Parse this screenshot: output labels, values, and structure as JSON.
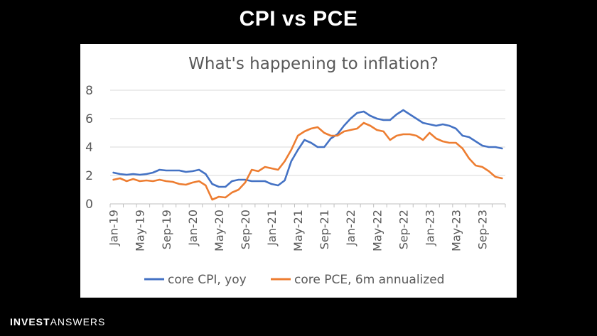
{
  "slide": {
    "title": "CPI vs PCE"
  },
  "brand": {
    "part1": "INVEST",
    "part2": "ANSWERS"
  },
  "chart_data": {
    "type": "line",
    "title": "What's happening to inflation?",
    "xlabel": "",
    "ylabel": "",
    "ylim": [
      0,
      8
    ],
    "yticks": [
      0,
      2,
      4,
      6,
      8
    ],
    "grid": true,
    "legend_position": "bottom",
    "x": [
      "2019-01",
      "2019-02",
      "2019-03",
      "2019-04",
      "2019-05",
      "2019-06",
      "2019-07",
      "2019-08",
      "2019-09",
      "2019-10",
      "2019-11",
      "2019-12",
      "2020-01",
      "2020-02",
      "2020-03",
      "2020-04",
      "2020-05",
      "2020-06",
      "2020-07",
      "2020-08",
      "2020-09",
      "2020-10",
      "2020-11",
      "2020-12",
      "2021-01",
      "2021-02",
      "2021-03",
      "2021-04",
      "2021-05",
      "2021-06",
      "2021-07",
      "2021-08",
      "2021-09",
      "2021-10",
      "2021-11",
      "2021-12",
      "2022-01",
      "2022-02",
      "2022-03",
      "2022-04",
      "2022-05",
      "2022-06",
      "2022-07",
      "2022-08",
      "2022-09",
      "2022-10",
      "2022-11",
      "2022-12",
      "2023-01",
      "2023-02",
      "2023-03",
      "2023-04",
      "2023-05",
      "2023-06",
      "2023-07",
      "2023-08",
      "2023-09",
      "2023-10",
      "2023-11",
      "2023-12"
    ],
    "tick_labels": [
      "Jan-19",
      "May-19",
      "Sep-19",
      "Jan-20",
      "May-20",
      "Sep-20",
      "Jan-21",
      "May-21",
      "Sep-21",
      "Jan-22",
      "May-22",
      "Sep-22",
      "Jan-23",
      "May-23",
      "Sep-23"
    ],
    "series": [
      {
        "name": "core CPI, yoy",
        "color": "#4472C4",
        "values": [
          2.2,
          2.1,
          2.05,
          2.1,
          2.05,
          2.1,
          2.2,
          2.4,
          2.35,
          2.35,
          2.35,
          2.25,
          2.3,
          2.4,
          2.1,
          1.4,
          1.2,
          1.2,
          1.6,
          1.7,
          1.7,
          1.6,
          1.6,
          1.6,
          1.4,
          1.3,
          1.65,
          3.0,
          3.8,
          4.5,
          4.3,
          4.0,
          4.0,
          4.6,
          4.9,
          5.5,
          6.0,
          6.4,
          6.5,
          6.2,
          6.0,
          5.9,
          5.9,
          6.3,
          6.6,
          6.3,
          6.0,
          5.7,
          5.6,
          5.5,
          5.6,
          5.5,
          5.3,
          4.8,
          4.7,
          4.4,
          4.1,
          4.0,
          4.0,
          3.9
        ]
      },
      {
        "name": "core PCE, 6m annualized",
        "color": "#ED7D31",
        "values": [
          1.7,
          1.8,
          1.6,
          1.75,
          1.6,
          1.65,
          1.6,
          1.7,
          1.6,
          1.55,
          1.4,
          1.35,
          1.5,
          1.6,
          1.3,
          0.3,
          0.5,
          0.45,
          0.8,
          1.0,
          1.5,
          2.4,
          2.3,
          2.6,
          2.5,
          2.4,
          3.0,
          3.8,
          4.8,
          5.1,
          5.3,
          5.4,
          5.0,
          4.8,
          4.8,
          5.1,
          5.2,
          5.3,
          5.7,
          5.5,
          5.2,
          5.1,
          4.5,
          4.8,
          4.9,
          4.9,
          4.8,
          4.5,
          5.0,
          4.6,
          4.4,
          4.3,
          4.3,
          3.9,
          3.2,
          2.7,
          2.6,
          2.3,
          1.9,
          1.8
        ]
      }
    ]
  }
}
